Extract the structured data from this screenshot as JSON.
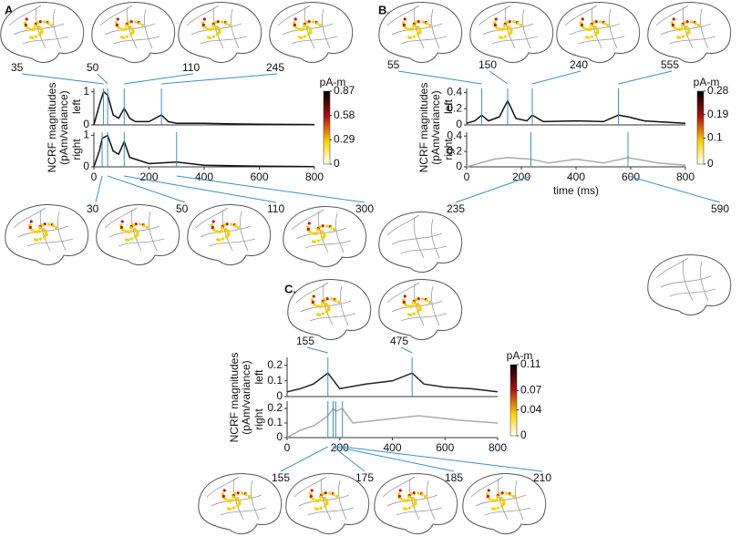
{
  "panels": [
    {
      "label": "A.",
      "ylabel": [
        "NCRF magnitudes",
        "(pAm/variance)"
      ],
      "xlim": [
        0,
        800
      ],
      "xticks": [
        0,
        200,
        400,
        600,
        800
      ],
      "hemispheres": [
        {
          "name": "left",
          "ylim": [
            0,
            1.1
          ],
          "yticks": [
            0,
            1
          ],
          "color": "#111111",
          "x": [
            0,
            20,
            35,
            50,
            70,
            90,
            110,
            130,
            150,
            200,
            245,
            270,
            300,
            400,
            500,
            600,
            800
          ],
          "values": [
            0,
            0.6,
            1.0,
            0.9,
            0.3,
            0.2,
            0.5,
            0.2,
            0.1,
            0.1,
            0.3,
            0.1,
            0.05,
            0.05,
            0.03,
            0.02,
            0.01
          ]
        },
        {
          "name": "right",
          "ylim": [
            0,
            1.1
          ],
          "yticks": [
            0,
            1
          ],
          "color": "#111111",
          "x": [
            0,
            20,
            30,
            50,
            70,
            90,
            110,
            130,
            200,
            300,
            400,
            600,
            800
          ],
          "values": [
            0,
            0.5,
            0.9,
            1.0,
            0.5,
            0.4,
            0.8,
            0.3,
            0.1,
            0.15,
            0.05,
            0.02,
            0.01
          ]
        }
      ],
      "colorbar": {
        "unit": "pA-m",
        "ticks": [
          0.87,
          0.58,
          0.29,
          0
        ]
      },
      "latencies_top": [
        35,
        50,
        110,
        245
      ],
      "latencies_bottom": [
        30,
        50,
        110,
        300
      ]
    },
    {
      "label": "B.",
      "ylabel": [
        "NCRF magnitudes",
        "(pAm/variance)"
      ],
      "xlim": [
        0,
        800
      ],
      "xticks": [
        0,
        200,
        400,
        600,
        800
      ],
      "xlabel": "time (ms)",
      "hemispheres": [
        {
          "name": "left",
          "ylim": [
            0,
            0.45
          ],
          "yticks": [
            0,
            0.2,
            0.4
          ],
          "color": "#111111",
          "x": [
            0,
            30,
            55,
            80,
            120,
            150,
            180,
            220,
            240,
            280,
            400,
            500,
            555,
            590,
            650,
            800
          ],
          "values": [
            0.02,
            0.05,
            0.12,
            0.05,
            0.1,
            0.3,
            0.08,
            0.05,
            0.12,
            0.04,
            0.05,
            0.04,
            0.12,
            0.1,
            0.05,
            0.02
          ]
        },
        {
          "name": "right",
          "ylim": [
            0,
            0.45
          ],
          "yticks": [
            0,
            0.2,
            0.4
          ],
          "color": "#aaaaaa",
          "x": [
            0,
            50,
            100,
            150,
            235,
            300,
            400,
            500,
            590,
            700,
            800
          ],
          "values": [
            0,
            0.05,
            0.1,
            0.12,
            0.1,
            0.05,
            0.1,
            0.05,
            0.12,
            0.05,
            0.02
          ]
        }
      ],
      "colorbar": {
        "unit": "pA-m",
        "ticks": [
          0.28,
          0.19,
          0.1,
          0
        ]
      },
      "latencies_top": [
        55,
        150,
        240,
        555
      ],
      "latencies_bottom": [
        235,
        590
      ]
    },
    {
      "label": "C.",
      "ylabel": [
        "NCRF magnitudes",
        "(pAm/variance)"
      ],
      "xlim": [
        0,
        800
      ],
      "xticks": [
        0,
        200,
        400,
        600,
        800
      ],
      "hemispheres": [
        {
          "name": "left",
          "ylim": [
            0,
            0.25
          ],
          "yticks": [
            0,
            0.1,
            0.2
          ],
          "color": "#222222",
          "x": [
            0,
            50,
            100,
            155,
            200,
            300,
            400,
            475,
            520,
            600,
            700,
            800
          ],
          "values": [
            0.03,
            0.05,
            0.08,
            0.15,
            0.05,
            0.08,
            0.1,
            0.15,
            0.08,
            0.06,
            0.05,
            0.03
          ]
        },
        {
          "name": "right",
          "ylim": [
            0,
            0.25
          ],
          "yticks": [
            0,
            0.1,
            0.2
          ],
          "color": "#aaaaaa",
          "x": [
            0,
            50,
            100,
            155,
            175,
            185,
            210,
            250,
            350,
            500,
            650,
            800
          ],
          "values": [
            0,
            0.05,
            0.08,
            0.15,
            0.2,
            0.18,
            0.2,
            0.1,
            0.12,
            0.15,
            0.12,
            0.1
          ]
        }
      ],
      "colorbar": {
        "unit": "pA-m",
        "ticks": [
          0.11,
          0.07,
          0.04,
          0
        ]
      },
      "latencies_top": [
        155,
        475
      ],
      "latencies_bottom": [
        155,
        175,
        185,
        210
      ]
    }
  ]
}
